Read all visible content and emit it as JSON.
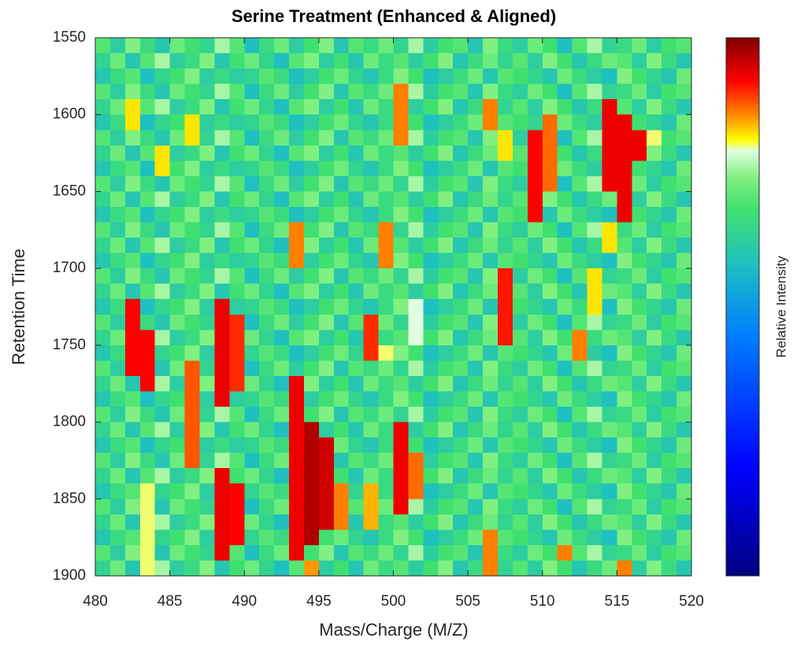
{
  "chart_data": {
    "type": "heatmap",
    "title": "Serine Treatment (Enhanced & Aligned)",
    "x_label": "Mass/Charge (M/Z)",
    "y_label": "Retention Time",
    "colorbar_label": "Relative Intensity",
    "xlim": [
      480,
      520
    ],
    "ylim": [
      1550,
      1900
    ],
    "y_reversed": true,
    "xticks": [
      480,
      485,
      490,
      495,
      500,
      505,
      510,
      515,
      520
    ],
    "yticks": [
      1550,
      1600,
      1650,
      1700,
      1750,
      1800,
      1850,
      1900
    ],
    "zlim": [
      0,
      100
    ],
    "colormap": [
      [
        0,
        "#00007f"
      ],
      [
        20,
        "#0000ff"
      ],
      [
        45,
        "#0080ff"
      ],
      [
        58,
        "#20c0c0"
      ],
      [
        68,
        "#40e070"
      ],
      [
        74,
        "#80f080"
      ],
      [
        79,
        "#e0ffe0"
      ],
      [
        81,
        "#ffff00"
      ],
      [
        86,
        "#ff8000"
      ],
      [
        92,
        "#ff0000"
      ],
      [
        100,
        "#7f0000"
      ]
    ],
    "z": [
      [
        70,
        62,
        74,
        66,
        60,
        72,
        68,
        64,
        76,
        70,
        58,
        66,
        72,
        62,
        68,
        74,
        60,
        70,
        66,
        72,
        64,
        76,
        62,
        68,
        70,
        60,
        74,
        66,
        62,
        72,
        68,
        58,
        70,
        76,
        64,
        66,
        72,
        62,
        68,
        70
      ],
      [
        64,
        72,
        60,
        70,
        76,
        62,
        66,
        74,
        60,
        68,
        72,
        64,
        58,
        70,
        74,
        62,
        68,
        60,
        72,
        66,
        70,
        62,
        68,
        74,
        60,
        66,
        72,
        64,
        70,
        62,
        74,
        68,
        60,
        66,
        72,
        70,
        62,
        74,
        66,
        60
      ],
      [
        60,
        66,
        70,
        58,
        64,
        68,
        74,
        62,
        66,
        62,
        64,
        70,
        66,
        58,
        62,
        68,
        72,
        64,
        60,
        66,
        74,
        68,
        58,
        62,
        66,
        72,
        60,
        70,
        68,
        64,
        60,
        72,
        66,
        62,
        58,
        74,
        68,
        64,
        60,
        72
      ],
      [
        70,
        62,
        74,
        66,
        60,
        72,
        68,
        64,
        76,
        70,
        58,
        66,
        72,
        62,
        68,
        74,
        60,
        70,
        66,
        72,
        86,
        76,
        62,
        68,
        70,
        60,
        74,
        66,
        62,
        72,
        68,
        58,
        70,
        76,
        64,
        66,
        72,
        62,
        68,
        70
      ],
      [
        64,
        72,
        82,
        70,
        76,
        62,
        66,
        74,
        60,
        68,
        72,
        64,
        58,
        70,
        74,
        62,
        68,
        60,
        72,
        66,
        86,
        62,
        68,
        74,
        60,
        66,
        86,
        64,
        70,
        62,
        74,
        68,
        60,
        66,
        93,
        70,
        62,
        74,
        66,
        60
      ],
      [
        60,
        66,
        82,
        58,
        64,
        68,
        82,
        62,
        66,
        62,
        64,
        70,
        66,
        58,
        62,
        68,
        72,
        64,
        60,
        66,
        86,
        68,
        58,
        62,
        66,
        72,
        86,
        70,
        68,
        64,
        87,
        72,
        66,
        62,
        93,
        93,
        68,
        64,
        60,
        72
      ],
      [
        70,
        62,
        74,
        66,
        60,
        72,
        82,
        64,
        76,
        70,
        58,
        66,
        72,
        62,
        68,
        74,
        60,
        70,
        66,
        72,
        86,
        76,
        62,
        68,
        70,
        60,
        74,
        82,
        62,
        92,
        87,
        58,
        70,
        76,
        93,
        93,
        93,
        80,
        68,
        70
      ],
      [
        64,
        72,
        60,
        70,
        82,
        62,
        66,
        74,
        60,
        68,
        72,
        64,
        58,
        70,
        74,
        62,
        68,
        60,
        72,
        66,
        70,
        62,
        68,
        74,
        60,
        66,
        72,
        82,
        70,
        92,
        87,
        68,
        60,
        66,
        93,
        93,
        93,
        74,
        66,
        60
      ],
      [
        60,
        66,
        70,
        58,
        82,
        68,
        74,
        62,
        66,
        62,
        64,
        70,
        66,
        58,
        62,
        68,
        72,
        64,
        60,
        66,
        74,
        68,
        58,
        62,
        66,
        72,
        60,
        70,
        68,
        92,
        87,
        72,
        66,
        62,
        93,
        93,
        68,
        64,
        60,
        72
      ],
      [
        70,
        62,
        74,
        66,
        60,
        72,
        68,
        64,
        76,
        70,
        58,
        66,
        72,
        62,
        68,
        74,
        60,
        70,
        66,
        72,
        64,
        76,
        62,
        68,
        70,
        60,
        74,
        66,
        62,
        92,
        87,
        58,
        70,
        76,
        93,
        93,
        72,
        62,
        68,
        70
      ],
      [
        64,
        72,
        60,
        70,
        76,
        62,
        66,
        74,
        60,
        68,
        72,
        64,
        58,
        70,
        74,
        62,
        68,
        60,
        72,
        66,
        70,
        62,
        68,
        74,
        60,
        66,
        72,
        64,
        70,
        92,
        74,
        68,
        60,
        66,
        72,
        93,
        62,
        74,
        66,
        60
      ],
      [
        60,
        66,
        70,
        58,
        64,
        68,
        74,
        62,
        66,
        62,
        64,
        70,
        66,
        58,
        62,
        68,
        72,
        64,
        60,
        66,
        74,
        68,
        58,
        62,
        66,
        72,
        60,
        70,
        68,
        92,
        60,
        72,
        66,
        62,
        58,
        93,
        68,
        64,
        60,
        72
      ],
      [
        70,
        62,
        74,
        66,
        60,
        72,
        68,
        64,
        76,
        70,
        58,
        66,
        72,
        86,
        68,
        74,
        60,
        70,
        66,
        86,
        64,
        76,
        62,
        68,
        70,
        60,
        74,
        66,
        62,
        72,
        68,
        58,
        70,
        76,
        82,
        66,
        72,
        62,
        68,
        70
      ],
      [
        64,
        72,
        60,
        70,
        76,
        62,
        66,
        74,
        60,
        68,
        72,
        64,
        58,
        86,
        74,
        62,
        68,
        60,
        72,
        86,
        70,
        62,
        68,
        74,
        60,
        66,
        72,
        64,
        70,
        62,
        74,
        68,
        60,
        66,
        82,
        70,
        62,
        74,
        66,
        60
      ],
      [
        60,
        66,
        70,
        58,
        64,
        68,
        74,
        62,
        66,
        62,
        64,
        70,
        66,
        86,
        62,
        68,
        72,
        64,
        60,
        86,
        74,
        68,
        58,
        62,
        66,
        72,
        60,
        70,
        68,
        64,
        60,
        72,
        66,
        62,
        58,
        74,
        68,
        64,
        60,
        72
      ],
      [
        70,
        62,
        74,
        66,
        60,
        72,
        68,
        64,
        76,
        70,
        58,
        66,
        72,
        62,
        68,
        74,
        60,
        70,
        66,
        72,
        64,
        76,
        62,
        68,
        70,
        60,
        74,
        91,
        62,
        72,
        68,
        58,
        70,
        82,
        64,
        66,
        72,
        62,
        68,
        70
      ],
      [
        64,
        72,
        60,
        70,
        76,
        62,
        66,
        74,
        60,
        68,
        72,
        64,
        58,
        70,
        74,
        62,
        68,
        60,
        72,
        66,
        70,
        62,
        68,
        74,
        60,
        66,
        72,
        91,
        70,
        62,
        74,
        68,
        60,
        82,
        72,
        70,
        62,
        74,
        66,
        60
      ],
      [
        60,
        66,
        92,
        58,
        64,
        68,
        74,
        62,
        93,
        62,
        64,
        70,
        66,
        58,
        62,
        68,
        72,
        64,
        60,
        66,
        74,
        79,
        58,
        62,
        66,
        72,
        60,
        91,
        68,
        64,
        60,
        72,
        66,
        82,
        58,
        74,
        68,
        64,
        60,
        72
      ],
      [
        70,
        62,
        92,
        66,
        60,
        72,
        68,
        64,
        93,
        90,
        58,
        66,
        72,
        62,
        68,
        74,
        60,
        70,
        90,
        72,
        64,
        79,
        62,
        68,
        70,
        60,
        74,
        91,
        62,
        72,
        68,
        58,
        70,
        76,
        64,
        66,
        72,
        62,
        68,
        70
      ],
      [
        64,
        72,
        92,
        92,
        76,
        62,
        66,
        74,
        93,
        90,
        72,
        64,
        58,
        70,
        74,
        62,
        68,
        60,
        90,
        66,
        70,
        79,
        68,
        74,
        60,
        66,
        72,
        91,
        70,
        62,
        74,
        68,
        86,
        66,
        72,
        70,
        62,
        74,
        66,
        60
      ],
      [
        60,
        66,
        92,
        92,
        64,
        68,
        74,
        62,
        93,
        90,
        64,
        70,
        66,
        58,
        62,
        68,
        72,
        64,
        90,
        80,
        74,
        68,
        58,
        62,
        66,
        72,
        60,
        70,
        68,
        64,
        60,
        72,
        86,
        62,
        58,
        74,
        68,
        64,
        60,
        72
      ],
      [
        70,
        62,
        92,
        92,
        60,
        72,
        88,
        64,
        93,
        90,
        58,
        66,
        72,
        62,
        68,
        74,
        60,
        70,
        66,
        72,
        64,
        76,
        62,
        68,
        70,
        60,
        74,
        66,
        62,
        72,
        68,
        58,
        70,
        76,
        64,
        66,
        72,
        62,
        68,
        70
      ],
      [
        64,
        72,
        60,
        92,
        76,
        62,
        88,
        74,
        93,
        90,
        72,
        64,
        58,
        93,
        74,
        62,
        68,
        60,
        72,
        66,
        70,
        62,
        68,
        74,
        60,
        66,
        72,
        64,
        70,
        62,
        74,
        68,
        60,
        66,
        72,
        70,
        62,
        74,
        66,
        60
      ],
      [
        60,
        66,
        70,
        58,
        64,
        68,
        88,
        62,
        93,
        62,
        64,
        70,
        66,
        93,
        62,
        68,
        72,
        64,
        60,
        66,
        74,
        68,
        58,
        62,
        66,
        72,
        60,
        70,
        68,
        64,
        60,
        72,
        66,
        62,
        58,
        74,
        68,
        64,
        60,
        72
      ],
      [
        70,
        62,
        74,
        66,
        60,
        72,
        88,
        64,
        76,
        70,
        58,
        66,
        72,
        93,
        68,
        74,
        60,
        70,
        66,
        72,
        64,
        76,
        62,
        68,
        70,
        60,
        74,
        66,
        62,
        72,
        68,
        58,
        70,
        76,
        64,
        66,
        72,
        62,
        68,
        70
      ],
      [
        64,
        72,
        60,
        70,
        76,
        62,
        88,
        74,
        60,
        68,
        72,
        64,
        58,
        93,
        97,
        62,
        68,
        60,
        72,
        66,
        93,
        62,
        68,
        74,
        60,
        66,
        72,
        64,
        70,
        62,
        74,
        68,
        60,
        66,
        72,
        70,
        62,
        74,
        66,
        60
      ],
      [
        60,
        66,
        70,
        58,
        64,
        68,
        88,
        62,
        66,
        62,
        64,
        70,
        66,
        93,
        97,
        95,
        72,
        64,
        60,
        66,
        93,
        68,
        58,
        62,
        66,
        72,
        60,
        70,
        68,
        64,
        60,
        72,
        66,
        62,
        58,
        74,
        68,
        64,
        60,
        72
      ],
      [
        70,
        62,
        74,
        66,
        60,
        72,
        88,
        64,
        76,
        70,
        58,
        66,
        72,
        93,
        97,
        95,
        60,
        70,
        66,
        72,
        93,
        87,
        62,
        68,
        70,
        60,
        74,
        66,
        62,
        72,
        68,
        58,
        70,
        76,
        64,
        66,
        72,
        62,
        68,
        70
      ],
      [
        64,
        72,
        60,
        70,
        76,
        62,
        66,
        74,
        93,
        68,
        72,
        64,
        58,
        93,
        97,
        95,
        68,
        60,
        72,
        66,
        93,
        87,
        68,
        74,
        60,
        66,
        72,
        64,
        70,
        62,
        74,
        68,
        60,
        66,
        72,
        70,
        62,
        74,
        66,
        60
      ],
      [
        60,
        66,
        70,
        80,
        64,
        68,
        74,
        62,
        93,
        92,
        64,
        70,
        66,
        93,
        97,
        95,
        86,
        64,
        84,
        66,
        93,
        87,
        58,
        62,
        66,
        72,
        60,
        70,
        68,
        64,
        60,
        72,
        66,
        62,
        58,
        74,
        68,
        64,
        60,
        72
      ],
      [
        70,
        62,
        74,
        80,
        60,
        72,
        68,
        64,
        93,
        92,
        58,
        66,
        72,
        93,
        97,
        95,
        86,
        70,
        84,
        72,
        93,
        76,
        62,
        68,
        70,
        60,
        74,
        66,
        62,
        72,
        68,
        58,
        70,
        76,
        64,
        66,
        72,
        62,
        68,
        70
      ],
      [
        64,
        72,
        60,
        80,
        76,
        62,
        66,
        74,
        93,
        92,
        72,
        64,
        58,
        93,
        97,
        95,
        86,
        60,
        84,
        66,
        70,
        62,
        68,
        74,
        60,
        66,
        72,
        64,
        70,
        62,
        74,
        68,
        60,
        66,
        72,
        70,
        62,
        74,
        66,
        60
      ],
      [
        60,
        66,
        70,
        80,
        64,
        68,
        74,
        62,
        93,
        92,
        64,
        70,
        66,
        93,
        97,
        68,
        72,
        64,
        60,
        66,
        74,
        68,
        58,
        62,
        66,
        72,
        86,
        70,
        68,
        64,
        60,
        72,
        66,
        62,
        58,
        74,
        68,
        64,
        60,
        72
      ],
      [
        70,
        62,
        74,
        80,
        60,
        72,
        68,
        64,
        93,
        70,
        58,
        66,
        72,
        93,
        68,
        74,
        60,
        70,
        66,
        72,
        64,
        76,
        62,
        68,
        70,
        60,
        86,
        66,
        62,
        72,
        68,
        86,
        70,
        76,
        64,
        66,
        72,
        62,
        68,
        70
      ],
      [
        64,
        72,
        60,
        80,
        76,
        62,
        66,
        74,
        60,
        68,
        72,
        64,
        58,
        70,
        85,
        62,
        68,
        60,
        72,
        66,
        70,
        62,
        68,
        74,
        60,
        66,
        86,
        64,
        70,
        62,
        74,
        68,
        60,
        66,
        72,
        86,
        62,
        74,
        66,
        60
      ]
    ]
  }
}
